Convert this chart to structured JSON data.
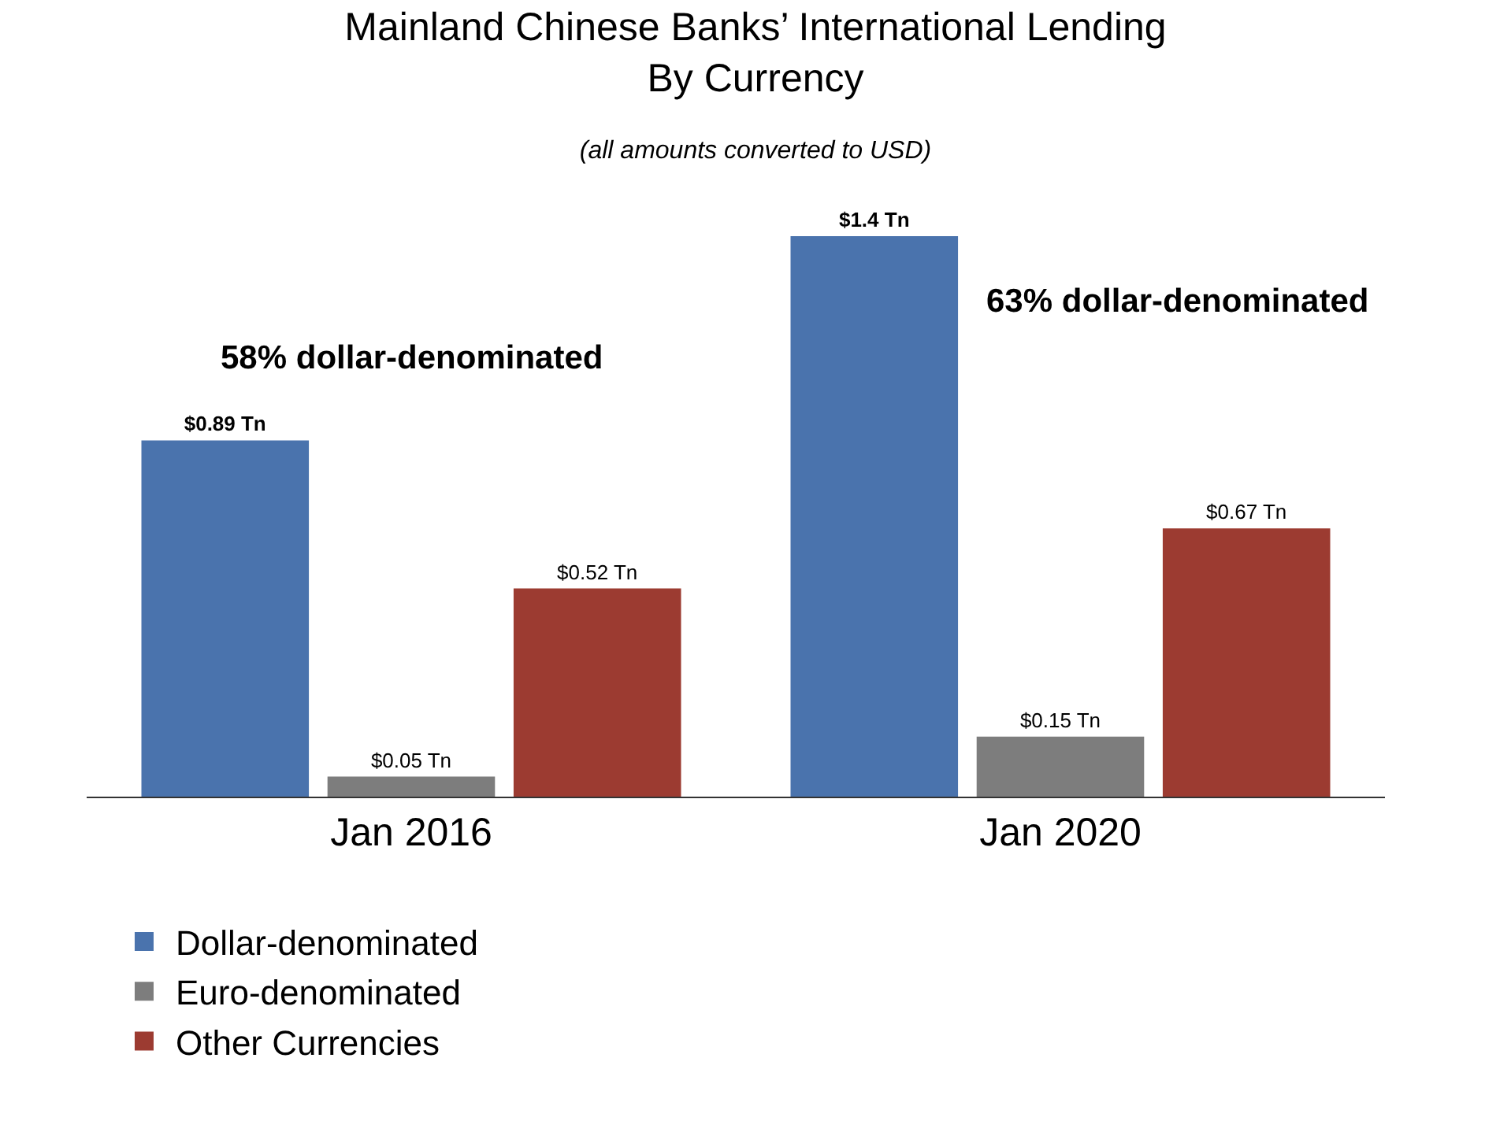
{
  "chart_data": {
    "type": "bar",
    "title": "Mainland Chinese Banks’ International Lending\nBy Currency",
    "subtitle": "(all amounts converted to USD)",
    "categories": [
      "Jan 2016",
      "Jan 2020"
    ],
    "series": [
      {
        "name": "Dollar-denominated",
        "color": "#4a73ad",
        "values": [
          0.89,
          1.4
        ],
        "value_labels": [
          "$0.89 Tn",
          "$1.4 Tn"
        ]
      },
      {
        "name": "Euro-denominated",
        "color": "#7d7d7d",
        "values": [
          0.05,
          0.15
        ],
        "value_labels": [
          "$0.05 Tn",
          "$0.15 Tn"
        ]
      },
      {
        "name": "Other Currencies",
        "color": "#9c3b31",
        "values": [
          0.52,
          0.67
        ],
        "value_labels": [
          "$0.52 Tn",
          "$0.67 Tn"
        ]
      }
    ],
    "annotations": [
      "58% dollar-denominated",
      "63% dollar-denominated"
    ],
    "legend": "bottom left",
    "grid": false
  }
}
